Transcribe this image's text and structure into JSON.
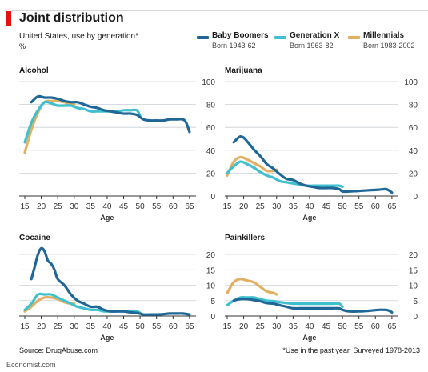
{
  "header": {
    "title": "Joint distribution",
    "subtitle": "United States, use by generation*",
    "unit": "%",
    "accent_color": "#e3120b"
  },
  "legend": [
    {
      "name": "Baby Boomers",
      "sub": "Born 1943-62",
      "color": "#1f6796"
    },
    {
      "name": "Generation X",
      "sub": "Born 1963-82",
      "color": "#40c0cf"
    },
    {
      "name": "Millennials",
      "sub": "Born 1983-2002",
      "color": "#e2b060"
    }
  ],
  "footer": {
    "source": "Source: DrugAbuse.com",
    "note": "*Use in the past year. Surveyed 1978-2013",
    "credit": "Economist.com"
  },
  "chart_data": [
    {
      "type": "line",
      "title": "Alcohol",
      "xlabel": "Age",
      "ylabel": "",
      "xlim": [
        15,
        66
      ],
      "ylim": [
        0,
        100
      ],
      "xticks": [
        15,
        20,
        25,
        30,
        35,
        40,
        45,
        50,
        55,
        60,
        65
      ],
      "yticks": [
        0,
        20,
        40,
        60,
        80,
        100
      ],
      "grid": "horizontal",
      "series": [
        {
          "name": "Baby Boomers",
          "color": "#1f6796",
          "x": [
            17,
            19,
            21,
            23,
            25,
            27,
            29,
            31,
            33,
            35,
            37,
            39,
            41,
            43,
            45,
            47,
            49,
            51,
            53,
            55,
            57,
            59,
            61,
            63,
            64,
            65
          ],
          "y": [
            82,
            87,
            86,
            86,
            85,
            83,
            82,
            82,
            80,
            78,
            77,
            75,
            74,
            73,
            72,
            72,
            71,
            67,
            66,
            66,
            66,
            67,
            67,
            67,
            64,
            56
          ]
        },
        {
          "name": "Generation X",
          "color": "#40c0cf",
          "x": [
            15,
            17,
            19,
            21,
            23,
            25,
            27,
            29,
            31,
            33,
            35,
            37,
            39,
            41,
            43,
            45,
            47,
            49,
            50
          ],
          "y": [
            47,
            64,
            75,
            82,
            81,
            79,
            79,
            79,
            77,
            76,
            74,
            74,
            74,
            74,
            74,
            75,
            75,
            75,
            70
          ]
        },
        {
          "name": "Millennials",
          "color": "#e2b060",
          "x": [
            15,
            17,
            19,
            21,
            23,
            25,
            27,
            29,
            30
          ],
          "y": [
            38,
            58,
            73,
            82,
            83,
            83,
            82,
            80,
            80
          ]
        }
      ]
    },
    {
      "type": "line",
      "title": "Marijuana",
      "xlabel": "Age",
      "ylabel": "",
      "xlim": [
        15,
        66
      ],
      "ylim": [
        0,
        100
      ],
      "xticks": [
        15,
        20,
        25,
        30,
        35,
        40,
        45,
        50,
        55,
        60,
        65
      ],
      "yticks": [
        0,
        20,
        40,
        60,
        80,
        100
      ],
      "grid": "horizontal",
      "series": [
        {
          "name": "Baby Boomers",
          "color": "#1f6796",
          "x": [
            17,
            18,
            19,
            20,
            21,
            23,
            25,
            27,
            29,
            31,
            33,
            35,
            37,
            39,
            41,
            43,
            45,
            47,
            49,
            50,
            52,
            55,
            58,
            61,
            63,
            64,
            65
          ],
          "y": [
            47,
            50,
            52,
            51,
            48,
            41,
            35,
            28,
            24,
            19,
            15,
            14,
            11,
            9,
            8,
            7,
            7,
            7,
            6,
            4,
            4,
            4.5,
            5,
            5.5,
            6,
            5,
            3
          ]
        },
        {
          "name": "Generation X",
          "color": "#40c0cf",
          "x": [
            15,
            17,
            19,
            21,
            23,
            25,
            27,
            29,
            31,
            33,
            35,
            37,
            39,
            41,
            43,
            45,
            47,
            49,
            50
          ],
          "y": [
            20,
            26,
            30,
            28,
            25,
            21,
            18,
            16,
            13,
            12,
            11,
            10,
            9,
            9,
            9,
            9,
            9,
            9,
            8
          ]
        },
        {
          "name": "Millennials",
          "color": "#e2b060",
          "x": [
            15,
            17,
            19,
            21,
            23,
            25,
            27,
            29,
            30
          ],
          "y": [
            18,
            30,
            34,
            32,
            29,
            26,
            22,
            22,
            23
          ]
        }
      ]
    },
    {
      "type": "line",
      "title": "Cocaine",
      "xlabel": "Age",
      "ylabel": "",
      "xlim": [
        15,
        66
      ],
      "ylim": [
        0,
        20
      ],
      "xticks": [
        15,
        20,
        25,
        30,
        35,
        40,
        45,
        50,
        55,
        60,
        65
      ],
      "yticks": [
        0,
        5,
        10,
        15,
        20
      ],
      "grid": "horizontal",
      "series": [
        {
          "name": "Baby Boomers",
          "color": "#1f6796",
          "x": [
            17,
            18,
            19,
            20,
            21,
            22,
            23,
            24,
            25,
            27,
            29,
            31,
            33,
            35,
            37,
            39,
            41,
            43,
            45,
            47,
            49,
            51,
            53,
            55,
            57,
            59,
            61,
            63,
            65
          ],
          "y": [
            12,
            16,
            20,
            22,
            21,
            18,
            17,
            15,
            12,
            10,
            7,
            5,
            4,
            3,
            3,
            2,
            1.5,
            1.5,
            1.5,
            1.2,
            1,
            0.5,
            0.5,
            0.5,
            0.6,
            0.8,
            0.8,
            0.8,
            0.5
          ]
        },
        {
          "name": "Generation X",
          "color": "#40c0cf",
          "x": [
            15,
            17,
            19,
            21,
            23,
            25,
            27,
            29,
            31,
            33,
            35,
            37,
            39,
            41,
            43,
            45,
            47,
            49,
            50
          ],
          "y": [
            2,
            4,
            7,
            7,
            7,
            6,
            5,
            4,
            3,
            2.5,
            2,
            2,
            1.5,
            1.5,
            1.5,
            1.5,
            1.5,
            1.5,
            1
          ]
        },
        {
          "name": "Millennials",
          "color": "#e2b060",
          "x": [
            15,
            17,
            19,
            21,
            23,
            25,
            27,
            29,
            30
          ],
          "y": [
            1.5,
            3,
            5,
            6,
            6,
            5.5,
            4.5,
            4,
            4
          ]
        }
      ]
    },
    {
      "type": "line",
      "title": "Painkillers",
      "xlabel": "Age",
      "ylabel": "",
      "xlim": [
        15,
        66
      ],
      "ylim": [
        0,
        20
      ],
      "xticks": [
        15,
        20,
        25,
        30,
        35,
        40,
        45,
        50,
        55,
        60,
        65
      ],
      "yticks": [
        0,
        5,
        10,
        15,
        20
      ],
      "grid": "horizontal",
      "series": [
        {
          "name": "Baby Boomers",
          "color": "#1f6796",
          "x": [
            17,
            19,
            21,
            23,
            25,
            27,
            29,
            31,
            33,
            35,
            37,
            39,
            41,
            43,
            45,
            47,
            49,
            50,
            52,
            55,
            58,
            61,
            63,
            64,
            65
          ],
          "y": [
            5,
            5.5,
            5.5,
            5.2,
            4.8,
            4.2,
            4,
            3.5,
            3,
            2.5,
            2.5,
            2.5,
            2.5,
            2.5,
            2.5,
            2.5,
            2.5,
            2,
            1.5,
            1.5,
            1.7,
            2,
            2,
            1.8,
            1.2
          ]
        },
        {
          "name": "Generation X",
          "color": "#40c0cf",
          "x": [
            15,
            17,
            19,
            21,
            23,
            25,
            27,
            29,
            31,
            33,
            35,
            37,
            39,
            41,
            43,
            45,
            47,
            49,
            50
          ],
          "y": [
            3.5,
            5,
            6,
            6,
            6,
            5.5,
            5,
            4.8,
            4.5,
            4.2,
            4,
            4,
            4,
            4,
            4,
            4,
            4,
            4,
            3
          ]
        },
        {
          "name": "Millennials",
          "color": "#e2b060",
          "x": [
            15,
            17,
            19,
            21,
            23,
            25,
            27,
            29,
            30
          ],
          "y": [
            7.5,
            11,
            12,
            11.5,
            11,
            9.5,
            8,
            7.5,
            7
          ]
        }
      ]
    }
  ]
}
